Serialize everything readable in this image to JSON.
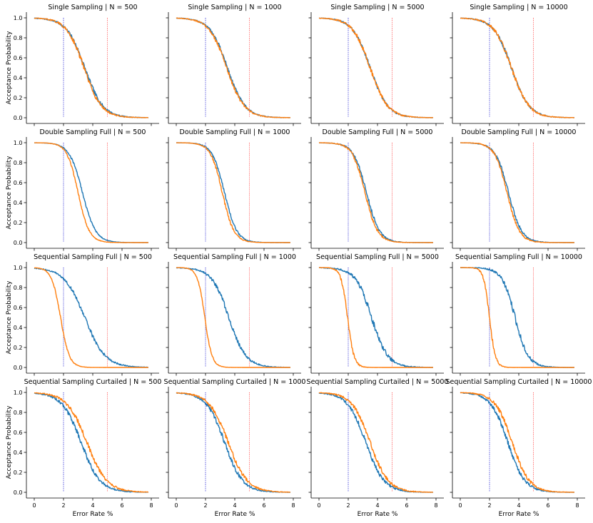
{
  "chart_data": {
    "type": "line",
    "layout": "4x4 grid of subplots",
    "x_label": "Error Rate %",
    "y_label": "Acceptance Probability",
    "x_ticks": [
      "0",
      "2",
      "4",
      "6",
      "8"
    ],
    "y_ticks": [
      "0.0",
      "0.2",
      "0.4",
      "0.6",
      "0.8",
      "1.0"
    ],
    "xlim": [
      0,
      8
    ],
    "ylim": [
      0,
      1
    ],
    "reference_lines": [
      {
        "x": 2,
        "color": "#0000cc",
        "style": "dotted"
      },
      {
        "x": 5,
        "color": "#ff3333",
        "style": "dotted"
      }
    ],
    "series_colors": {
      "series_1": "#1f77b4",
      "series_2": "#ff7f0e"
    },
    "grid": false,
    "panels": [
      {
        "title": "Single Sampling | N = 500",
        "series": [
          {
            "name": "series_1",
            "midpoint": 3.45,
            "scale": 0.62,
            "noise": 0.012
          },
          {
            "name": "series_2",
            "midpoint": 3.4,
            "scale": 0.6,
            "noise": 0.012
          }
        ]
      },
      {
        "title": "Single Sampling | N = 1000",
        "series": [
          {
            "name": "series_1",
            "midpoint": 3.5,
            "scale": 0.6,
            "noise": 0.01
          },
          {
            "name": "series_2",
            "midpoint": 3.45,
            "scale": 0.6,
            "noise": 0.01
          }
        ]
      },
      {
        "title": "Single Sampling | N = 5000",
        "series": [
          {
            "name": "series_1",
            "midpoint": 3.5,
            "scale": 0.6,
            "noise": 0.01
          },
          {
            "name": "series_2",
            "midpoint": 3.5,
            "scale": 0.6,
            "noise": 0.012
          }
        ]
      },
      {
        "title": "Single Sampling | N = 10000",
        "series": [
          {
            "name": "series_1",
            "midpoint": 3.5,
            "scale": 0.6,
            "noise": 0.01
          },
          {
            "name": "series_2",
            "midpoint": 3.5,
            "scale": 0.6,
            "noise": 0.012
          }
        ]
      },
      {
        "title": "Double Sampling Full | N = 500",
        "series": [
          {
            "name": "series_1",
            "midpoint": 3.3,
            "scale": 0.45,
            "noise": 0.006
          },
          {
            "name": "series_2",
            "midpoint": 3.0,
            "scale": 0.38,
            "noise": 0.006
          }
        ]
      },
      {
        "title": "Double Sampling Full | N = 1000",
        "series": [
          {
            "name": "series_1",
            "midpoint": 3.3,
            "scale": 0.42,
            "noise": 0.008
          },
          {
            "name": "series_2",
            "midpoint": 3.15,
            "scale": 0.4,
            "noise": 0.008
          }
        ]
      },
      {
        "title": "Double Sampling Full | N = 5000",
        "series": [
          {
            "name": "series_1",
            "midpoint": 3.25,
            "scale": 0.45,
            "noise": 0.01
          },
          {
            "name": "series_2",
            "midpoint": 3.15,
            "scale": 0.43,
            "noise": 0.01
          }
        ]
      },
      {
        "title": "Double Sampling Full | N = 10000",
        "series": [
          {
            "name": "series_1",
            "midpoint": 3.3,
            "scale": 0.45,
            "noise": 0.01
          },
          {
            "name": "series_2",
            "midpoint": 3.2,
            "scale": 0.42,
            "noise": 0.01
          }
        ]
      },
      {
        "title": "Sequential Sampling Full | N = 500",
        "series": [
          {
            "name": "series_1",
            "midpoint": 3.45,
            "scale": 0.7,
            "noise": 0.01
          },
          {
            "name": "series_2",
            "midpoint": 1.8,
            "scale": 0.3,
            "noise": 0.006
          }
        ]
      },
      {
        "title": "Sequential Sampling Full | N = 1000",
        "series": [
          {
            "name": "series_1",
            "midpoint": 3.6,
            "scale": 0.58,
            "noise": 0.012
          },
          {
            "name": "series_2",
            "midpoint": 1.95,
            "scale": 0.25,
            "noise": 0.006
          }
        ]
      },
      {
        "title": "Sequential Sampling Full | N = 5000",
        "series": [
          {
            "name": "series_1",
            "midpoint": 3.6,
            "scale": 0.55,
            "noise": 0.015
          },
          {
            "name": "series_2",
            "midpoint": 1.95,
            "scale": 0.22,
            "noise": 0.012
          }
        ]
      },
      {
        "title": "Sequential Sampling Full | N = 10000",
        "series": [
          {
            "name": "series_1",
            "midpoint": 3.75,
            "scale": 0.45,
            "noise": 0.015
          },
          {
            "name": "series_2",
            "midpoint": 2.0,
            "scale": 0.2,
            "noise": 0.012
          }
        ]
      },
      {
        "title": "Sequential Sampling Curtailed | N = 500",
        "series": [
          {
            "name": "series_1",
            "midpoint": 3.2,
            "scale": 0.65,
            "noise": 0.012
          },
          {
            "name": "series_2",
            "midpoint": 3.6,
            "scale": 0.68,
            "noise": 0.012
          }
        ]
      },
      {
        "title": "Sequential Sampling Curtailed | N = 1000",
        "series": [
          {
            "name": "series_1",
            "midpoint": 3.3,
            "scale": 0.62,
            "noise": 0.012
          },
          {
            "name": "series_2",
            "midpoint": 3.55,
            "scale": 0.65,
            "noise": 0.012
          }
        ]
      },
      {
        "title": "Sequential Sampling Curtailed | N = 5000",
        "series": [
          {
            "name": "series_1",
            "midpoint": 3.2,
            "scale": 0.62,
            "noise": 0.012
          },
          {
            "name": "series_2",
            "midpoint": 3.5,
            "scale": 0.62,
            "noise": 0.012
          }
        ]
      },
      {
        "title": "Sequential Sampling Curtailed | N = 10000",
        "series": [
          {
            "name": "series_1",
            "midpoint": 3.25,
            "scale": 0.58,
            "noise": 0.012
          },
          {
            "name": "series_2",
            "midpoint": 3.55,
            "scale": 0.58,
            "noise": 0.012
          }
        ]
      }
    ]
  }
}
